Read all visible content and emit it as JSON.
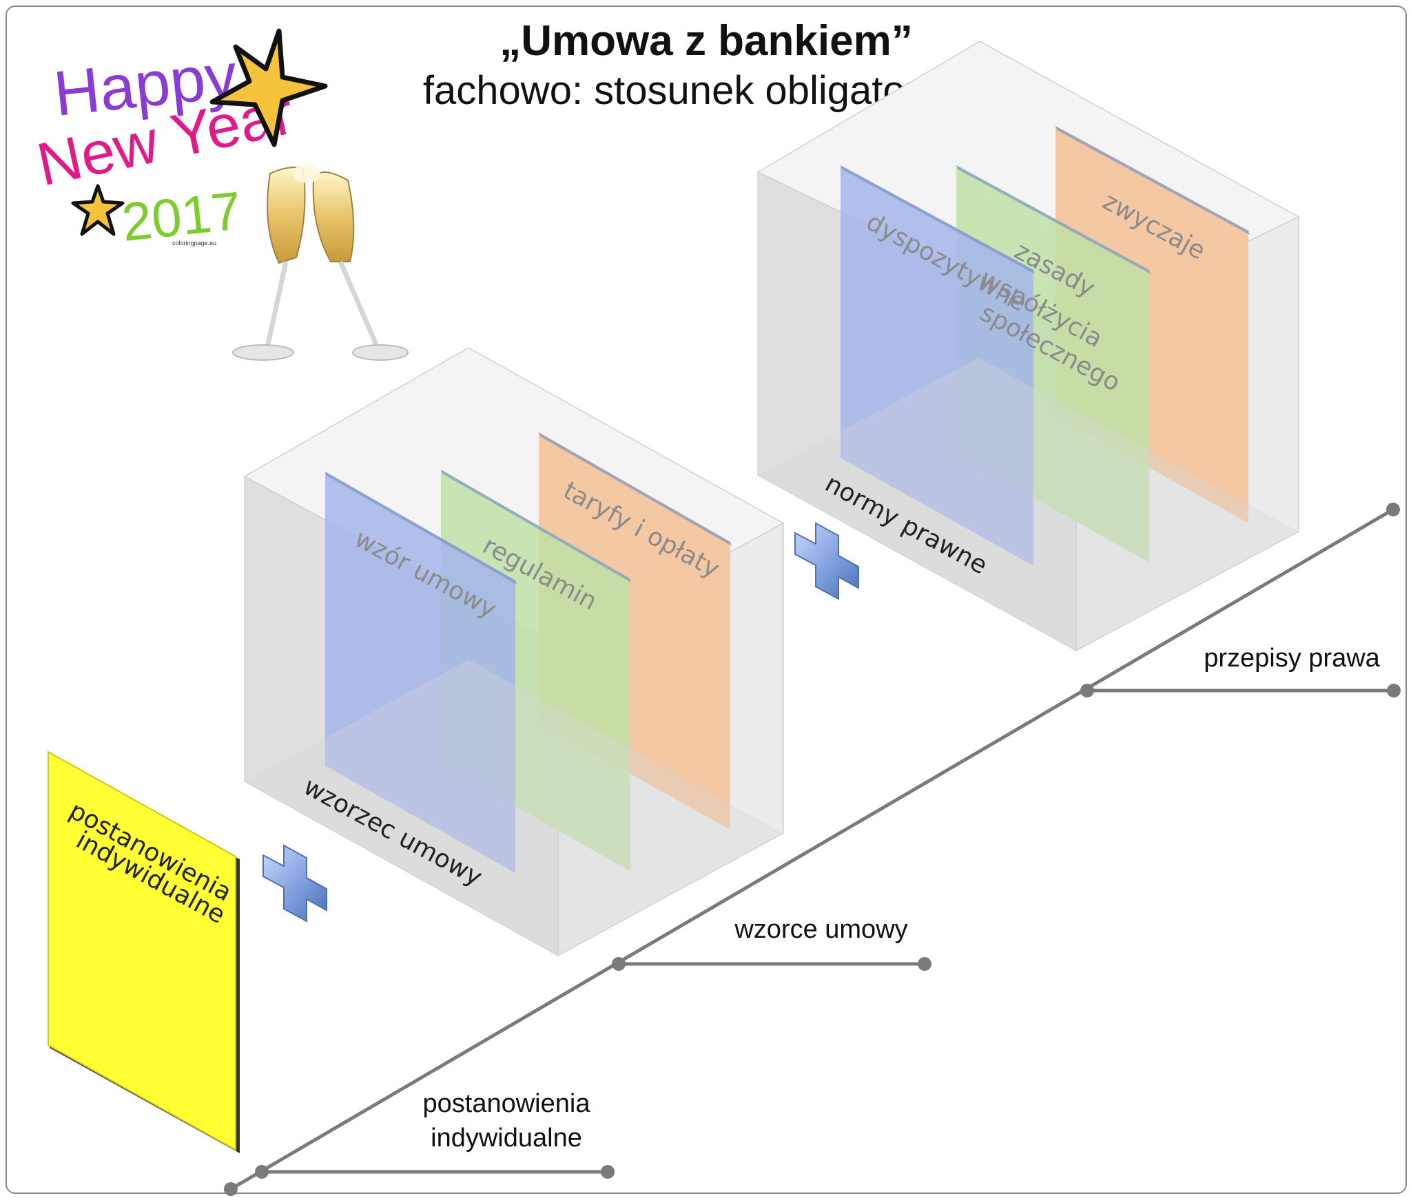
{
  "title": "„Umowa z bankiem”",
  "subtitle": "fachowo: stosunek obligatoryjny",
  "decoration": {
    "line1": "Happy",
    "line2": "New Year",
    "year": "2017",
    "credit": "coloringpage.eu",
    "icon": "champagne-glasses-icon"
  },
  "front_sheet": {
    "label_line1": "postanowienia",
    "label_line2": "indywidualne"
  },
  "box_pattern": {
    "caption": "wzorzec umowy",
    "sheets": [
      "wzór umowy",
      "regulamin",
      "taryfy i opłaty"
    ]
  },
  "box_law": {
    "caption": "normy prawne",
    "sheets": [
      "dyspozytywne",
      "zasady",
      "współżycia",
      "społecznego",
      "zwyczaje"
    ]
  },
  "axis": {
    "labels": [
      "przepisy prawa",
      "wzorce umowy",
      "postanowienia",
      "indywidualne"
    ]
  },
  "colors": {
    "blue": "#a3b5ea",
    "green": "#bfe0a7",
    "orange": "#f4c39a",
    "yellow": "#ffff33",
    "axis": "#7a7a7a",
    "plus": "#7fa0de"
  }
}
